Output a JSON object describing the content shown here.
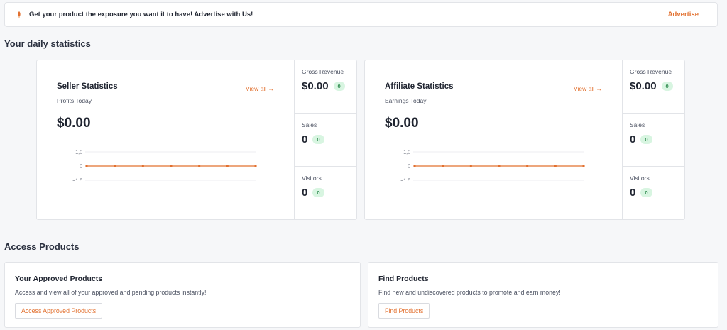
{
  "banner": {
    "message": "Get your product the exposure you want it to have! Advertise with Us!",
    "link": "Advertise",
    "icon": "rocket-icon"
  },
  "daily_title": "Your daily statistics",
  "seller": {
    "title": "Seller Statistics",
    "subtitle": "Profits Today",
    "amount": "$0.00",
    "view_all": "View all →",
    "gross_label": "Gross Revenue",
    "gross_value": "$0.00",
    "gross_badge": "0",
    "sales_label": "Sales",
    "sales_value": "0",
    "sales_badge": "0",
    "visitors_label": "Visitors",
    "visitors_value": "0",
    "visitors_badge": "0"
  },
  "affiliate": {
    "title": "Affiliate Statistics",
    "subtitle": "Earnings Today",
    "amount": "$0.00",
    "view_all": "View all →",
    "gross_label": "Gross Revenue",
    "gross_value": "$0.00",
    "gross_badge": "0",
    "sales_label": "Sales",
    "sales_value": "0",
    "sales_badge": "0",
    "visitors_label": "Visitors",
    "visitors_value": "0",
    "visitors_badge": "0"
  },
  "chart_data": [
    {
      "type": "line",
      "y_ticks": [
        "1,0",
        "0",
        "−1,0"
      ],
      "ylim": [
        -1,
        1
      ],
      "values": [
        0,
        0,
        0,
        0,
        0,
        0,
        0
      ],
      "color": "#e2702f",
      "grid": true
    },
    {
      "type": "line",
      "y_ticks": [
        "1,0",
        "0",
        "−1,0"
      ],
      "ylim": [
        -1,
        1
      ],
      "values": [
        0,
        0,
        0,
        0,
        0,
        0,
        0
      ],
      "color": "#e2702f",
      "grid": true
    }
  ],
  "access_title": "Access Products",
  "approved": {
    "title": "Your Approved Products",
    "desc": "Access and view all of your approved and pending products instantly!",
    "button": "Access Approved Products"
  },
  "find": {
    "title": "Find Products",
    "desc": "Find new and undiscovered products to promote and earn money!",
    "button": "Find Products"
  },
  "colors": {
    "accent": "#e2702f",
    "badge_bg": "#d8f5e1",
    "badge_text": "#2f8b4f"
  }
}
